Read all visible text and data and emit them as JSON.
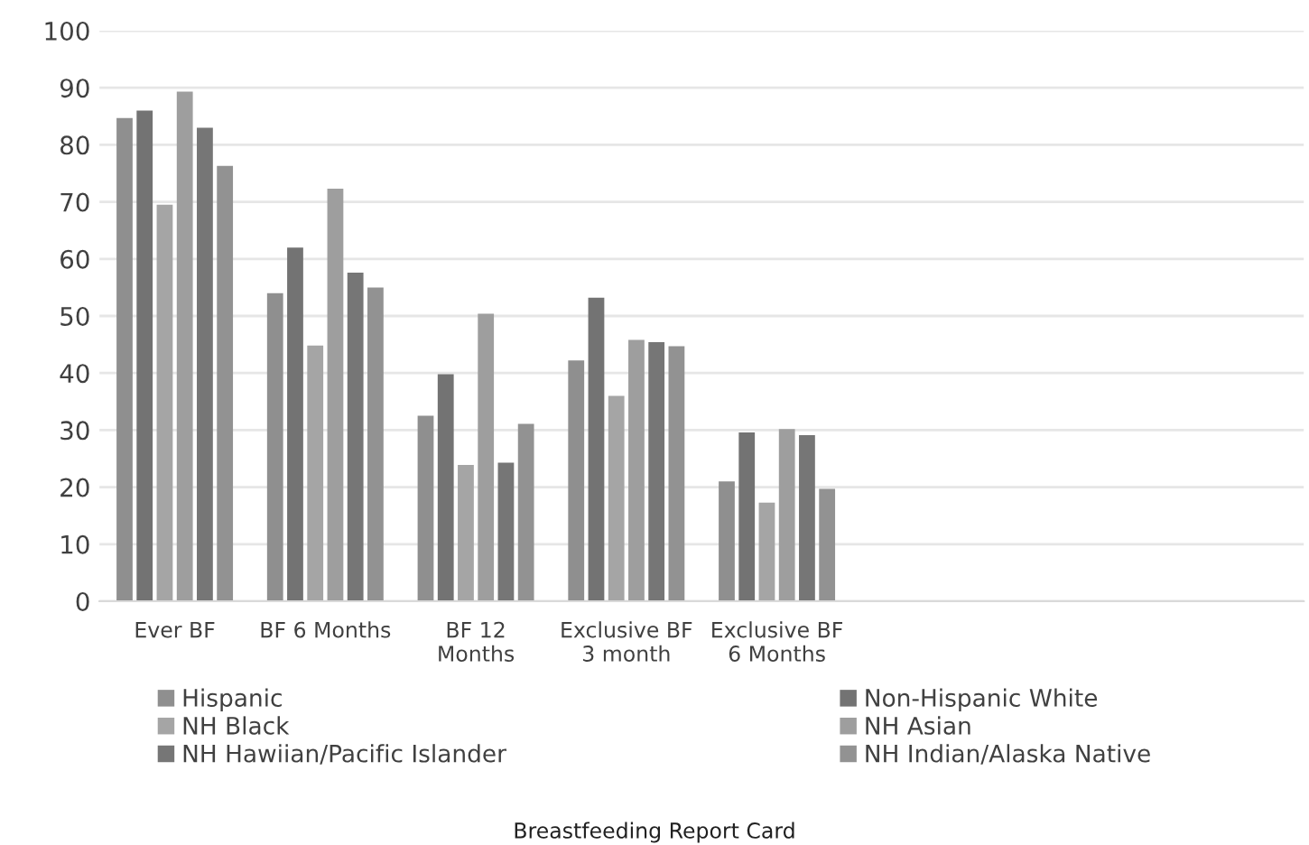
{
  "chart_data": {
    "type": "bar",
    "annotations": [
      "Breastfeeding Report Card"
    ],
    "categories": [
      "Ever BF",
      "BF 6 Months",
      "BF 12\nMonths",
      "Exclusive BF\n3 month",
      "Exclusive BF\n6 Months",
      null,
      null,
      null
    ],
    "series": [
      {
        "name": "Hispanic",
        "color": "#8f8f8f",
        "values": [
          84.7,
          54,
          32.5,
          42.2,
          21,
          null,
          null,
          null
        ]
      },
      {
        "name": "Non-Hispanic White",
        "color": "#737373",
        "values": [
          86,
          62,
          39.8,
          53.2,
          29.6,
          null,
          null,
          null
        ]
      },
      {
        "name": "NH Black",
        "color": "#a5a5a5",
        "values": [
          69.5,
          44.8,
          23.9,
          36,
          17.3,
          null,
          null,
          null
        ]
      },
      {
        "name": "NH Asian",
        "color": "#9e9e9e",
        "values": [
          89.3,
          72.3,
          50.4,
          45.8,
          30.2,
          null,
          null,
          null
        ]
      },
      {
        "name": "NH Hawiian/Pacific Islander",
        "color": "#767676",
        "values": [
          83,
          57.6,
          24.3,
          45.4,
          29.1,
          null,
          null,
          null
        ]
      },
      {
        "name": "NH Indian/Alaska Native",
        "color": "#929292",
        "values": [
          76.3,
          55,
          31.1,
          44.7,
          19.7,
          null,
          null,
          null
        ]
      }
    ],
    "ylim": [
      0,
      100
    ],
    "yticks": [
      0,
      10,
      20,
      30,
      40,
      50,
      60,
      70,
      80,
      90,
      100
    ],
    "grid": "y",
    "legend": "bottom"
  }
}
